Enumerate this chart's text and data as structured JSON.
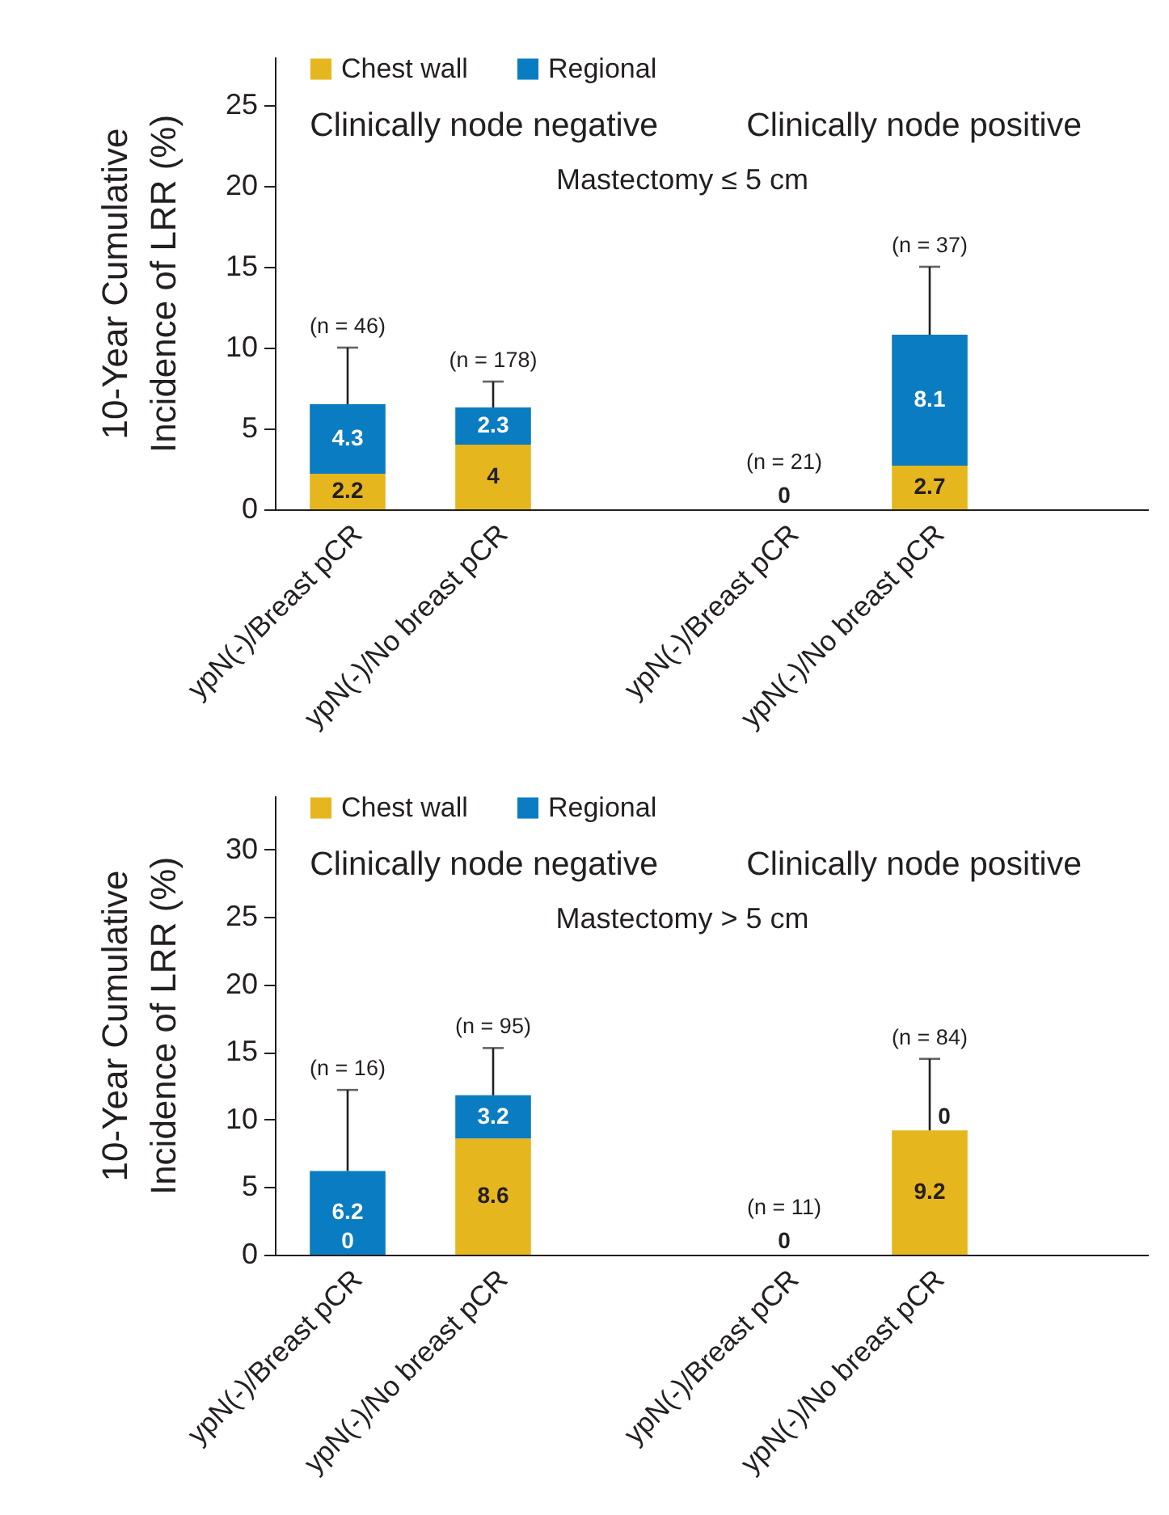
{
  "chart_data": [
    {
      "type": "bar",
      "title": "Mastectomy ≤ 5 cm",
      "ylabel": "10-Year Cumulative\nIncidence of LRR (%)",
      "categories": [
        "ypN(-)/Breast pCR",
        "ypN(-)/No breast pCR",
        "ypN(-)/Breast pCR",
        "ypN(-)/No breast pCR"
      ],
      "stacked": true,
      "series": [
        {
          "name": "Chest wall",
          "color": "#e6b61e",
          "values": [
            2.2,
            4,
            0,
            2.7
          ],
          "value_labels": [
            "2.2",
            "4",
            null,
            "2.7"
          ]
        },
        {
          "name": "Regional",
          "color": "#0a7cc1",
          "values": [
            4.3,
            2.3,
            0,
            8.1
          ],
          "value_labels": [
            "4.3",
            "2.3",
            null,
            "8.1"
          ],
          "errors": [
            [
              6.5,
              10
            ],
            [
              6.3,
              7.9
            ],
            null,
            [
              10.8,
              15
            ]
          ]
        }
      ],
      "totals": [
        null,
        null,
        "0",
        null
      ],
      "ylim": [
        0,
        28
      ],
      "yticks": [
        0,
        5,
        10,
        15,
        20,
        25
      ],
      "legend": "top left",
      "annotations": [
        "Clinically node negative",
        "Clinically node positive",
        "(n = 46)",
        "(n = 178)",
        "(n = 21)",
        "(n = 37)"
      ]
    },
    {
      "type": "bar",
      "title": "Mastectomy > 5 cm",
      "ylabel": "10-Year Cumulative\nIncidence of LRR (%)",
      "categories": [
        "ypN(-)/Breast pCR",
        "ypN(-)/No breast pCR",
        "ypN(-)/Breast pCR",
        "ypN(-)/No breast pCR"
      ],
      "stacked": true,
      "series": [
        {
          "name": "Chest wall",
          "color": "#e6b61e",
          "values": [
            0,
            8.6,
            0,
            9.2
          ],
          "value_labels": [
            "0",
            "8.6",
            null,
            "9.2"
          ],
          "errors": [
            null,
            null,
            null,
            [
              9.2,
              14.5
            ]
          ]
        },
        {
          "name": "Regional",
          "color": "#0a7cc1",
          "values": [
            6.2,
            3.2,
            0,
            0
          ],
          "value_labels": [
            "6.2",
            "3.2",
            null,
            "0"
          ],
          "errors": [
            [
              6.2,
              12.2
            ],
            [
              11.8,
              15.3
            ],
            null,
            null
          ]
        }
      ],
      "totals": [
        null,
        null,
        "0",
        null
      ],
      "ylim": [
        0,
        34
      ],
      "yticks": [
        0,
        5,
        10,
        15,
        20,
        25,
        30
      ],
      "legend": "top left",
      "annotations": [
        "Clinically node negative",
        "Clinically node positive",
        "(n = 16)",
        "(n = 95)",
        "(n = 11)",
        "(n = 84)"
      ]
    }
  ]
}
